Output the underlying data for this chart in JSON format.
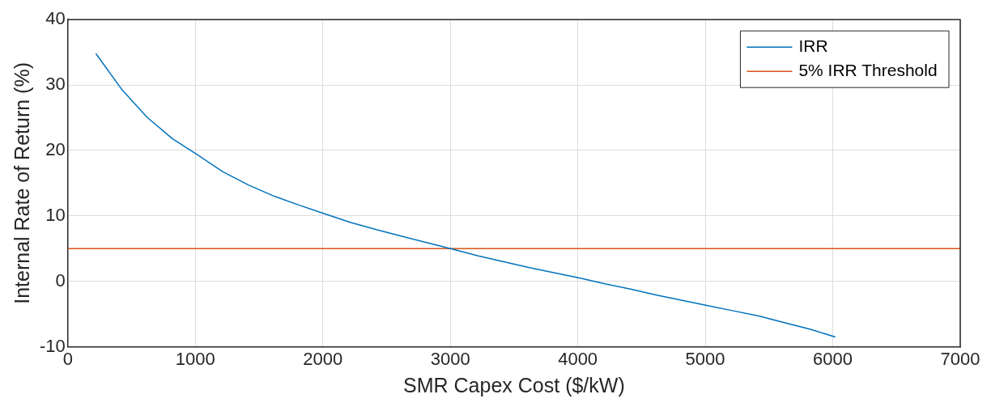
{
  "chart_data": {
    "type": "line",
    "xlabel": "SMR Capex Cost ($/kW)",
    "ylabel": "Internal Rate of Return (%)",
    "xlim": [
      0,
      7000
    ],
    "xticks": [
      0,
      1000,
      2000,
      3000,
      4000,
      5000,
      6000,
      7000
    ],
    "ylim": [
      -10,
      40
    ],
    "yticks": [
      -10,
      0,
      10,
      20,
      30,
      40
    ],
    "grid": true,
    "legend": "top right",
    "marker": "none",
    "line_style": "solid",
    "series": [
      {
        "name": "IRR",
        "color": "#0072bd",
        "x": [
          220,
          420,
          620,
          820,
          1020,
          1220,
          1420,
          1620,
          1820,
          2020,
          2220,
          2420,
          2620,
          2820,
          3020,
          3220,
          3420,
          3620,
          3820,
          4020,
          4220,
          4420,
          4620,
          4820,
          5020,
          5220,
          5420,
          5620,
          5820,
          6020
        ],
        "values": [
          34.8,
          29.4,
          25.1,
          21.8,
          19.3,
          16.7,
          14.7,
          13.0,
          11.6,
          10.3,
          9.0,
          7.9,
          6.9,
          5.9,
          4.9,
          3.9,
          3.0,
          2.1,
          1.3,
          0.5,
          -0.4,
          -1.2,
          -2.1,
          -2.9,
          -3.7,
          -4.5,
          -5.3,
          -6.3,
          -7.3,
          -8.5
        ]
      }
    ],
    "ref_lines": [
      {
        "axis": "y",
        "value": 5,
        "label": "5% IRR Threshold",
        "color": "#d95319"
      }
    ]
  }
}
